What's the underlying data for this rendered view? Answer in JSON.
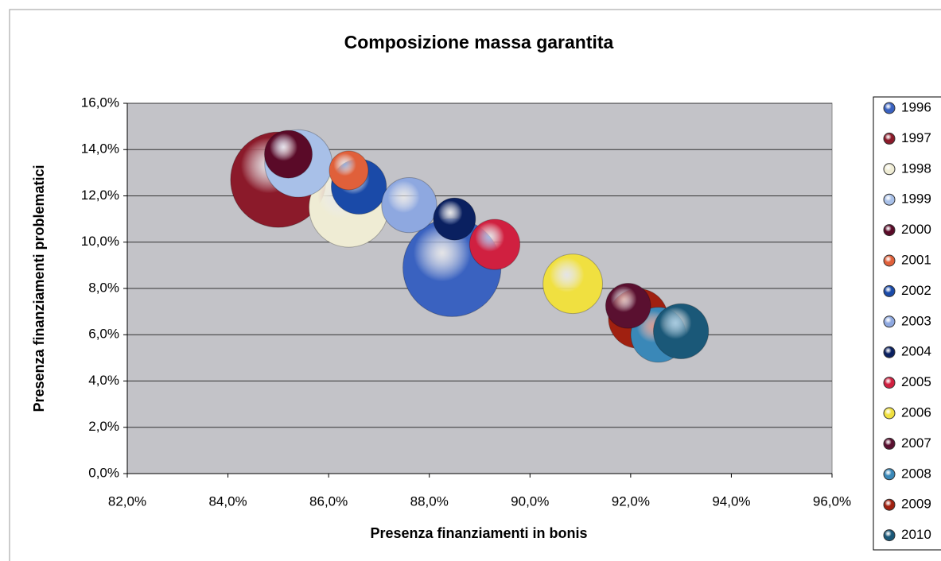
{
  "chart_data": {
    "type": "bubble",
    "title": "Composizione massa garantita",
    "x_label": "Presenza finanziamenti in bonis",
    "y_label": "Presenza finanziamenti problematici",
    "xlim": [
      82,
      96
    ],
    "xticks": [
      {
        "value": 82,
        "label": "82,0%"
      },
      {
        "value": 84,
        "label": "84,0%"
      },
      {
        "value": 86,
        "label": "86,0%"
      },
      {
        "value": 88,
        "label": "88,0%"
      },
      {
        "value": 90,
        "label": "90,0%"
      },
      {
        "value": 92,
        "label": "92,0%"
      },
      {
        "value": 94,
        "label": "94,0%"
      },
      {
        "value": 96,
        "label": "96,0%"
      }
    ],
    "ylim": [
      0,
      16
    ],
    "yticks": [
      {
        "value": 0,
        "label": "0,0%"
      },
      {
        "value": 2,
        "label": "2,0%"
      },
      {
        "value": 4,
        "label": "4,0%"
      },
      {
        "value": 6,
        "label": "6,0%"
      },
      {
        "value": 8,
        "label": "8,0%"
      },
      {
        "value": 10,
        "label": "10,0%"
      },
      {
        "value": 12,
        "label": "12,0%"
      },
      {
        "value": 14,
        "label": "14,0%"
      },
      {
        "value": 16,
        "label": "16,0%"
      }
    ],
    "grid": true,
    "legend": "right",
    "series": [
      {
        "name": "1996",
        "color": "#3a62c0",
        "x": [
          88.45
        ],
        "values": [
          8.9
        ],
        "sizes": [
          38
        ]
      },
      {
        "name": "1997",
        "color": "#8b1a2a",
        "x": [
          85.0
        ],
        "values": [
          12.7
        ],
        "sizes": [
          36
        ]
      },
      {
        "name": "1998",
        "color": "#efecd4",
        "x": [
          86.4
        ],
        "values": [
          11.5
        ],
        "sizes": [
          25
        ]
      },
      {
        "name": "1999",
        "color": "#a8c0e8",
        "x": [
          85.4
        ],
        "values": [
          13.4
        ],
        "sizes": [
          18
        ]
      },
      {
        "name": "2000",
        "color": "#5a0a28",
        "x": [
          85.2
        ],
        "values": [
          13.8
        ],
        "sizes": [
          9
        ]
      },
      {
        "name": "2001",
        "color": "#e0603a",
        "x": [
          86.4
        ],
        "values": [
          13.1
        ],
        "sizes": [
          6
        ]
      },
      {
        "name": "2002",
        "color": "#1a4aa8",
        "x": [
          86.6
        ],
        "values": [
          12.4
        ],
        "sizes": [
          12
        ]
      },
      {
        "name": "2003",
        "color": "#8ea8e0",
        "x": [
          87.6
        ],
        "values": [
          11.6
        ],
        "sizes": [
          12
        ]
      },
      {
        "name": "2004",
        "color": "#0a2060",
        "x": [
          88.5
        ],
        "values": [
          11.0
        ],
        "sizes": [
          7
        ]
      },
      {
        "name": "2005",
        "color": "#d02040",
        "x": [
          89.3
        ],
        "values": [
          9.9
        ],
        "sizes": [
          10
        ]
      },
      {
        "name": "2006",
        "color": "#f0e040",
        "x": [
          90.85
        ],
        "values": [
          8.2
        ],
        "sizes": [
          14
        ]
      },
      {
        "name": "2007",
        "color": "#5a1030",
        "x": [
          91.95
        ],
        "values": [
          7.25
        ],
        "sizes": [
          8
        ]
      },
      {
        "name": "2008",
        "color": "#3a88b8",
        "x": [
          92.55
        ],
        "values": [
          6.0
        ],
        "sizes": [
          12
        ]
      },
      {
        "name": "2009",
        "color": "#a02010",
        "x": [
          92.15
        ],
        "values": [
          6.7
        ],
        "sizes": [
          14
        ]
      },
      {
        "name": "2010",
        "color": "#1a5878",
        "x": [
          93.0
        ],
        "values": [
          6.15
        ],
        "sizes": [
          12
        ]
      }
    ]
  }
}
